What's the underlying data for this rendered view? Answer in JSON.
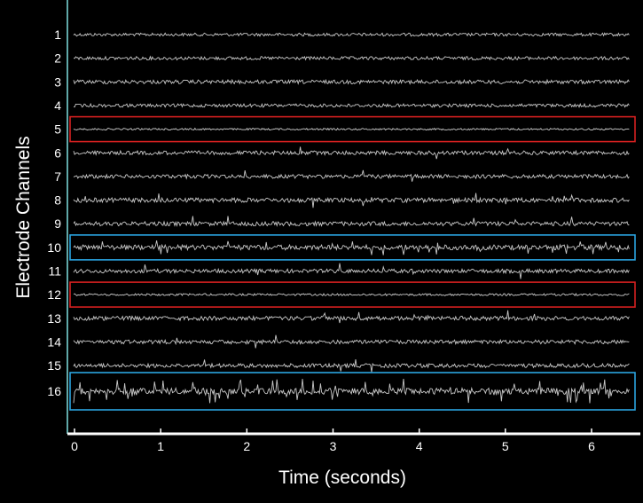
{
  "chart_data": {
    "type": "line",
    "title": "",
    "xlabel": "Time (seconds)",
    "ylabel": "Electrode Channels",
    "xlim": [
      0,
      6.4
    ],
    "x_ticks": [
      0,
      1,
      2,
      3,
      4,
      5,
      6
    ],
    "x_tick_labels": [
      "0",
      "1",
      "2",
      "3",
      "4",
      "5",
      "6"
    ],
    "grid": false,
    "legend": "none",
    "channels": [
      {
        "label": "1",
        "amplitude": 0.35,
        "spike_rate": 0.0,
        "highlight": "none"
      },
      {
        "label": "2",
        "amplitude": 0.4,
        "spike_rate": 0.0,
        "highlight": "none"
      },
      {
        "label": "3",
        "amplitude": 0.5,
        "spike_rate": 0.0,
        "highlight": "none"
      },
      {
        "label": "4",
        "amplitude": 0.4,
        "spike_rate": 0.0,
        "highlight": "none"
      },
      {
        "label": "5",
        "amplitude": 0.12,
        "spike_rate": 0.0,
        "highlight": "red"
      },
      {
        "label": "6",
        "amplitude": 0.5,
        "spike_rate": 0.005,
        "highlight": "none"
      },
      {
        "label": "7",
        "amplitude": 0.5,
        "spike_rate": 0.005,
        "highlight": "none"
      },
      {
        "label": "8",
        "amplitude": 0.6,
        "spike_rate": 0.01,
        "highlight": "none"
      },
      {
        "label": "9",
        "amplitude": 0.55,
        "spike_rate": 0.01,
        "highlight": "none"
      },
      {
        "label": "10",
        "amplitude": 0.7,
        "spike_rate": 0.06,
        "highlight": "blue"
      },
      {
        "label": "11",
        "amplitude": 0.5,
        "spike_rate": 0.01,
        "highlight": "none"
      },
      {
        "label": "12",
        "amplitude": 0.18,
        "spike_rate": 0.0,
        "highlight": "red"
      },
      {
        "label": "13",
        "amplitude": 0.55,
        "spike_rate": 0.01,
        "highlight": "none"
      },
      {
        "label": "14",
        "amplitude": 0.5,
        "spike_rate": 0.005,
        "highlight": "none"
      },
      {
        "label": "15",
        "amplitude": 0.5,
        "spike_rate": 0.005,
        "highlight": "none"
      },
      {
        "label": "16",
        "amplitude": 0.9,
        "spike_rate": 0.1,
        "highlight": "blue"
      }
    ]
  },
  "colors": {
    "background": "#000000",
    "trace": "#c8c8c8",
    "text": "#ffffff",
    "red_box": "#d42020",
    "blue_box": "#2aa4e0",
    "axis": "#ffffff",
    "left_axis": "#5fa8a8"
  }
}
